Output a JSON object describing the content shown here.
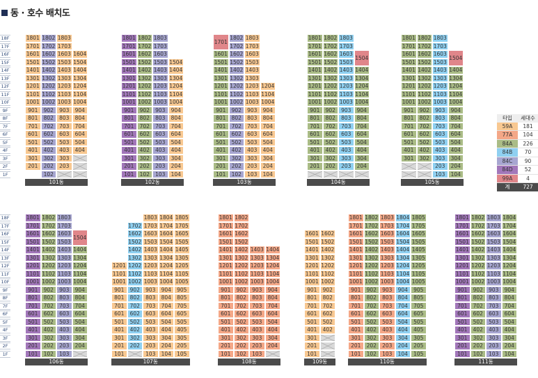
{
  "title": "동 · 호수 배치도",
  "colors": {
    "59A": "#f8c891",
    "77A": "#f4a787",
    "84A": "#aabc86",
    "84B": "#8fd0f1",
    "84C": "#a7a6d1",
    "84D": "#a277ba",
    "99A": "#e0868a"
  },
  "legend": {
    "header": {
      "type": "타입",
      "count": "세대수"
    },
    "rows": [
      {
        "type": "59A",
        "count": "181"
      },
      {
        "type": "77A",
        "count": "104"
      },
      {
        "type": "84A",
        "count": "226"
      },
      {
        "type": "84B",
        "count": "70"
      },
      {
        "type": "84C",
        "count": "90"
      },
      {
        "type": "84D",
        "count": "52"
      },
      {
        "type": "99A",
        "count": "4"
      }
    ],
    "total": {
      "label": "계",
      "count": "727"
    }
  },
  "floors": [
    "1F",
    "2F",
    "3F",
    "4F",
    "5F",
    "6F",
    "7F",
    "8F",
    "9F",
    "10F",
    "11F",
    "12F",
    "13F",
    "14F",
    "15F",
    "16F",
    "17F",
    "18F"
  ],
  "buildings": [
    {
      "label": "101동",
      "columns": [
        {
          "type": "59A",
          "floors": [
            2,
            18
          ],
          "empty": [
            1
          ]
        },
        {
          "type": "84C",
          "floors": [
            1,
            18
          ]
        },
        {
          "type": "59A",
          "floors": [
            2,
            18
          ],
          "xout": [
            1
          ]
        },
        {
          "type": "59A",
          "floors": [
            2,
            16
          ],
          "xout": [
            1,
            2,
            3
          ]
        }
      ]
    },
    {
      "label": "102동",
      "columns": [
        {
          "type": "84D",
          "floors": [
            1,
            18
          ]
        },
        {
          "type": "84A",
          "floors": [
            1,
            18
          ]
        },
        {
          "type": "84C",
          "floors": [
            1,
            18
          ]
        },
        {
          "type": "59A",
          "floors": [
            1,
            15
          ]
        }
      ]
    },
    {
      "label": "103동",
      "columns": [
        {
          "type": "84A",
          "floors": [
            1,
            16
          ],
          "spans": [
            {
              "floors": [
                17,
                18
              ],
              "type": "99A",
              "text": "1701"
            }
          ]
        },
        {
          "type": "84C",
          "floors": [
            1,
            18
          ]
        },
        {
          "type": "59A",
          "floors": [
            1,
            18
          ]
        },
        {
          "type": "59A",
          "floors": [
            1,
            12
          ]
        }
      ]
    },
    {
      "label": "104동",
      "columns": [
        {
          "type": "84A",
          "floors": [
            2,
            18
          ],
          "xout": [
            1
          ]
        },
        {
          "type": "84A",
          "floors": [
            2,
            18
          ],
          "xout": [
            1
          ]
        },
        {
          "type": "84B",
          "floors": [
            2,
            18
          ],
          "xout": [
            1
          ]
        },
        {
          "type": "84A",
          "floors": [
            2,
            14
          ],
          "xout": [
            1
          ],
          "spans": [
            {
              "floors": [
                15,
                16
              ],
              "type": "99A",
              "text": "1504"
            }
          ]
        }
      ]
    },
    {
      "label": "105동",
      "columns": [
        {
          "type": "84A",
          "floors": [
            3,
            18
          ],
          "xout": [
            1,
            2
          ]
        },
        {
          "type": "84A",
          "floors": [
            3,
            18
          ],
          "xout": [
            1,
            2
          ]
        },
        {
          "type": "84B",
          "floors": [
            1,
            18
          ]
        },
        {
          "type": "84A",
          "floors": [
            1,
            14
          ],
          "spans": [
            {
              "floors": [
                15,
                16
              ],
              "type": "99A",
              "text": "1504"
            }
          ]
        }
      ]
    },
    {
      "label": "106동",
      "columns": [
        {
          "type": "84D",
          "floors": [
            1,
            18
          ]
        },
        {
          "type": "84A",
          "floors": [
            1,
            18
          ]
        },
        {
          "type": "84C",
          "floors": [
            1,
            18
          ]
        },
        {
          "type": "84A",
          "floors": [
            2,
            14
          ],
          "xout": [
            1
          ],
          "spans": [
            {
              "floors": [
                15,
                16
              ],
              "type": "99A",
              "text": "1504"
            }
          ]
        }
      ]
    },
    {
      "label": "107동",
      "columns": [
        {
          "type": "59A",
          "floors": [
            1,
            12
          ]
        },
        {
          "type": "84B",
          "floors": [
            2,
            17
          ],
          "xout": [
            1
          ]
        },
        {
          "type": "59A",
          "floors": [
            1,
            18
          ]
        },
        {
          "type": "59A",
          "floors": [
            1,
            18
          ]
        },
        {
          "type": "59A",
          "floors": [
            1,
            18
          ]
        }
      ]
    },
    {
      "label": "108동",
      "columns": [
        {
          "type": "77A",
          "floors": [
            1,
            18
          ]
        },
        {
          "type": "77A",
          "floors": [
            1,
            18
          ]
        },
        {
          "type": "77A",
          "floors": [
            1,
            14
          ]
        },
        {
          "type": "77A",
          "floors": [
            2,
            14
          ],
          "xout": [
            1
          ]
        }
      ]
    },
    {
      "label": "109동",
      "columns": [
        {
          "type": "59A",
          "floors": [
            1,
            16
          ]
        },
        {
          "type": "59A",
          "floors": [
            4,
            16
          ],
          "xout": [
            1,
            2,
            3
          ]
        }
      ]
    },
    {
      "label": "110동",
      "columns": [
        {
          "type": "77A",
          "floors": [
            1,
            18
          ]
        },
        {
          "type": "84A",
          "floors": [
            1,
            18
          ]
        },
        {
          "type": "77A",
          "floors": [
            1,
            18
          ]
        },
        {
          "type": "84B",
          "floors": [
            1,
            18
          ]
        },
        {
          "type": "84A",
          "floors": [
            1,
            18
          ]
        }
      ]
    },
    {
      "label": "111동",
      "columns": [
        {
          "type": "84D",
          "floors": [
            1,
            18
          ]
        },
        {
          "type": "84A",
          "floors": [
            1,
            18
          ]
        },
        {
          "type": "84C",
          "floors": [
            1,
            18
          ]
        },
        {
          "type": "84A",
          "floors": [
            1,
            18
          ]
        }
      ]
    }
  ]
}
